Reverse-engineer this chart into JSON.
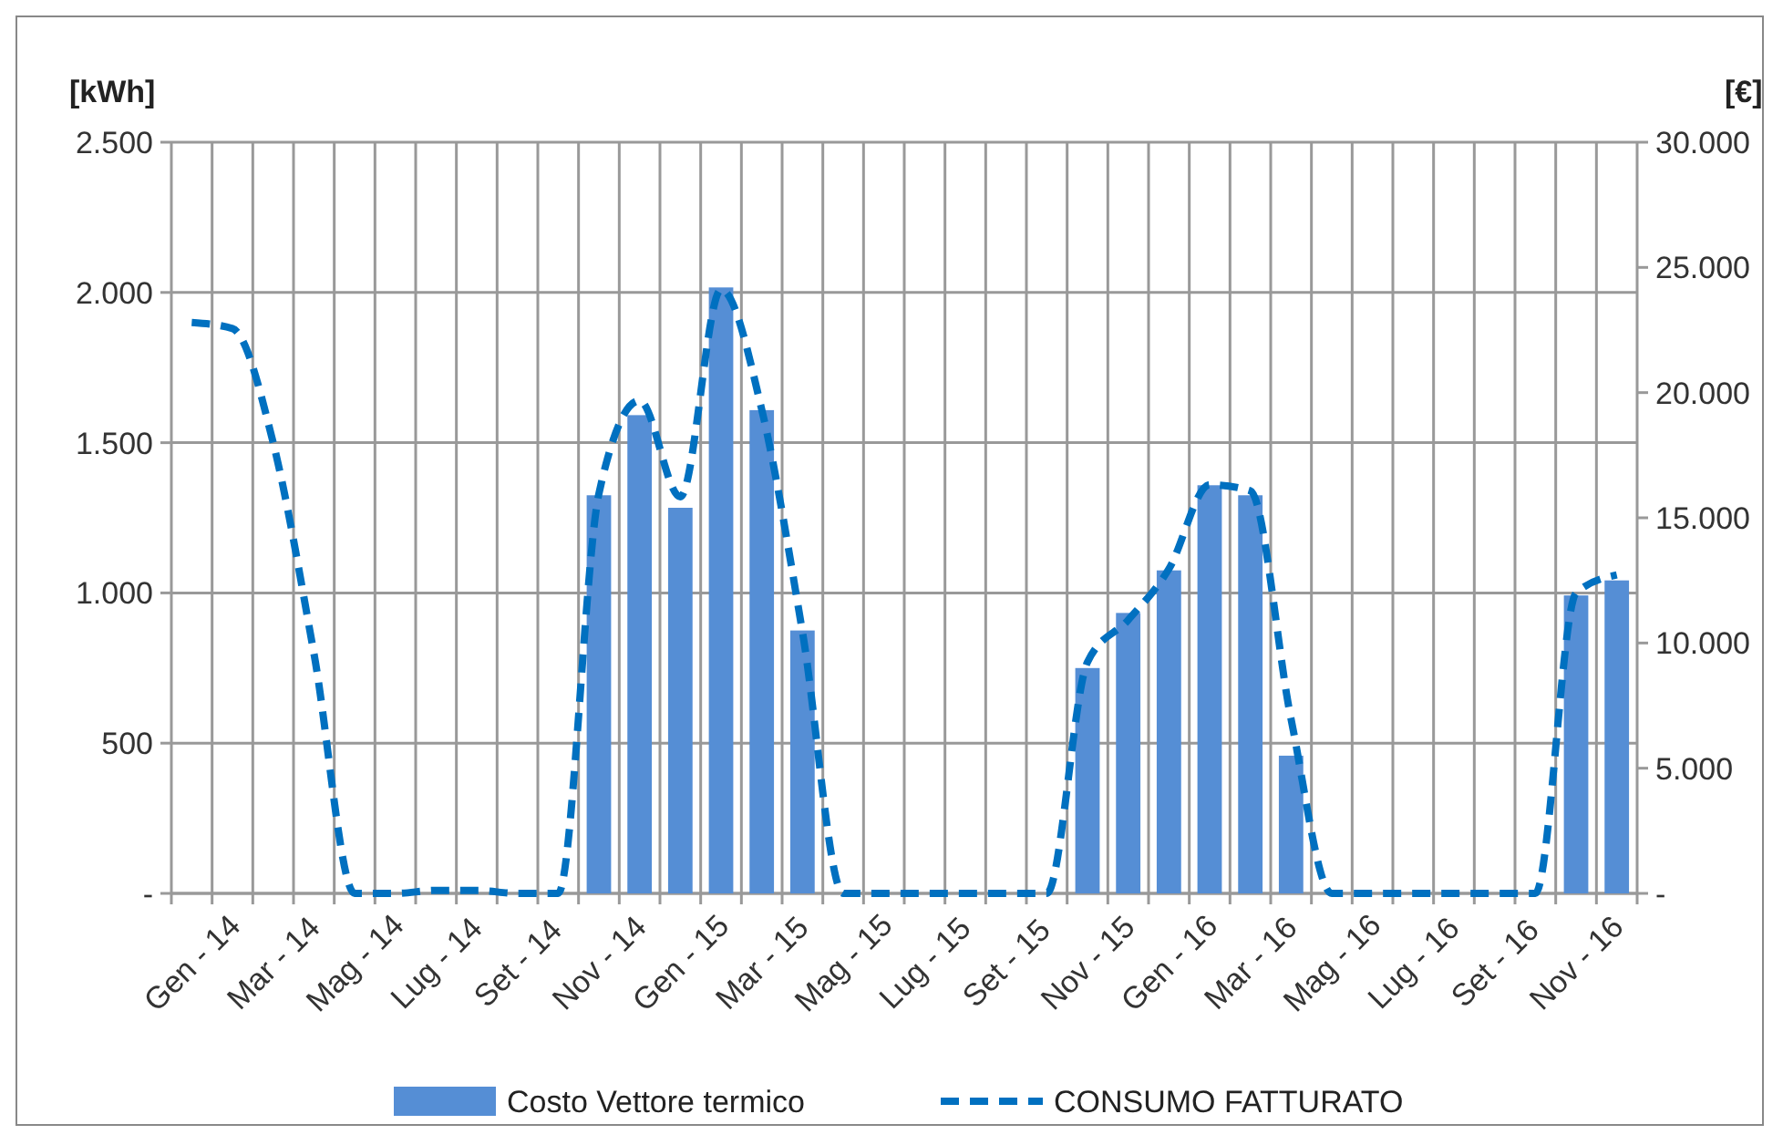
{
  "chart_data": {
    "type": "bar",
    "xlabel": null,
    "ylabel": "[kWh]",
    "y2label": "[€]",
    "categories": [
      "Gen - 14",
      null,
      "Mar - 14",
      null,
      "Mag - 14",
      null,
      "Lug - 14",
      null,
      "Set - 14",
      null,
      "Nov - 14",
      null,
      "Gen - 15",
      null,
      "Mar - 15",
      null,
      "Mag - 15",
      null,
      "Lug - 15",
      null,
      "Set - 15",
      null,
      "Nov - 15",
      null,
      "Gen - 16",
      null,
      "Mar - 16",
      null,
      "Mag - 16",
      null,
      "Lug - 16",
      null,
      "Set - 16",
      null,
      "Nov - 16",
      null
    ],
    "series": [
      {
        "name": "Costo Vettore termico",
        "axis": "y2",
        "color": "#558ed5",
        "values": [
          null,
          null,
          null,
          null,
          null,
          null,
          null,
          null,
          null,
          null,
          15900,
          19100,
          15400,
          24200,
          19300,
          10500,
          null,
          null,
          null,
          null,
          null,
          null,
          9000,
          11200,
          12900,
          16300,
          15900,
          5500,
          null,
          null,
          null,
          null,
          null,
          null,
          11900,
          12500
        ]
      },
      {
        "name": "CONSUMO FATTURATO",
        "type": "line",
        "axis": "y",
        "color": "#0070c0",
        "line_style": "dashed",
        "values": [
          1900,
          1880,
          1500,
          800,
          0,
          0,
          10,
          10,
          0,
          0,
          1330,
          1640,
          1320,
          2010,
          1610,
          870,
          0,
          0,
          0,
          0,
          0,
          0,
          770,
          910,
          1080,
          1360,
          1340,
          580,
          0,
          0,
          0,
          0,
          0,
          0,
          1000,
          1060
        ]
      }
    ],
    "ylim": [
      0,
      2500
    ],
    "yticks": [
      {
        "value": 0,
        "label": "-"
      },
      500,
      {
        "value": 1000,
        "label": "1.000"
      },
      {
        "value": 1500,
        "label": "1.500"
      },
      {
        "value": 2000,
        "label": "2.000"
      },
      {
        "value": 2500,
        "label": "2.500"
      }
    ],
    "y2lim": [
      0,
      30000
    ],
    "y2ticks": [
      {
        "value": 0,
        "label": "-"
      },
      {
        "value": 5000,
        "label": "5.000"
      },
      {
        "value": 10000,
        "label": "10.000"
      },
      {
        "value": 15000,
        "label": "15.000"
      },
      {
        "value": 20000,
        "label": "20.000"
      },
      {
        "value": 25000,
        "label": "25.000"
      },
      {
        "value": 30000,
        "label": "30.000"
      }
    ],
    "grid": true,
    "legend": "bottom"
  }
}
